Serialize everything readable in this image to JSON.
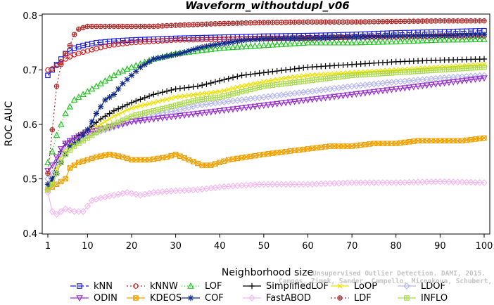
{
  "chart_data": {
    "type": "line",
    "title": "Waveform_withoutdupl_v06",
    "xlabel": "Neighborhood size",
    "ylabel": "ROC AUC",
    "xlim": [
      1,
      100
    ],
    "ylim": [
      0.4,
      0.8
    ],
    "xticks": [
      1,
      10,
      20,
      30,
      40,
      50,
      60,
      70,
      80,
      90,
      100
    ],
    "yticks": [
      0.4,
      0.5,
      0.6,
      0.7,
      0.8
    ],
    "grid": false,
    "legend_position": "bottom",
    "watermark": [
      "Unsupervised Outlier Detection. DAMI, 2015.",
      "Campos, Zimek, Sander, Campello, Micenkova, Schubert, Assent, Houle"
    ],
    "series": [
      {
        "name": "kNN",
        "color": "#1a1adb",
        "marker": "square",
        "dash": "8,3",
        "points": [
          [
            1,
            0.69
          ],
          [
            2,
            0.7
          ],
          [
            3,
            0.71
          ],
          [
            4,
            0.72
          ],
          [
            5,
            0.73
          ],
          [
            7,
            0.74
          ],
          [
            9,
            0.745
          ],
          [
            12,
            0.75
          ],
          [
            16,
            0.753
          ],
          [
            20,
            0.755
          ],
          [
            30,
            0.758
          ],
          [
            40,
            0.76
          ],
          [
            50,
            0.762
          ],
          [
            60,
            0.763
          ],
          [
            70,
            0.765
          ],
          [
            80,
            0.768
          ],
          [
            90,
            0.77
          ],
          [
            100,
            0.772
          ]
        ]
      },
      {
        "name": "kNNW",
        "color": "#d11a1a",
        "marker": "circle",
        "dash": "2,3",
        "points": [
          [
            1,
            0.7
          ],
          [
            2,
            0.702
          ],
          [
            3,
            0.708
          ],
          [
            4,
            0.715
          ],
          [
            5,
            0.72
          ],
          [
            7,
            0.728
          ],
          [
            10,
            0.735
          ],
          [
            15,
            0.745
          ],
          [
            20,
            0.75
          ],
          [
            30,
            0.755
          ],
          [
            40,
            0.756
          ],
          [
            50,
            0.758
          ],
          [
            60,
            0.758
          ],
          [
            70,
            0.76
          ],
          [
            80,
            0.76
          ],
          [
            90,
            0.762
          ],
          [
            100,
            0.762
          ]
        ]
      },
      {
        "name": "LOF",
        "color": "#22c422",
        "marker": "triangle",
        "dash": "1,3",
        "points": [
          [
            1,
            0.53
          ],
          [
            2,
            0.55
          ],
          [
            3,
            0.58
          ],
          [
            4,
            0.6
          ],
          [
            5,
            0.62
          ],
          [
            7,
            0.645
          ],
          [
            9,
            0.655
          ],
          [
            11,
            0.665
          ],
          [
            14,
            0.68
          ],
          [
            17,
            0.695
          ],
          [
            20,
            0.705
          ],
          [
            25,
            0.72
          ],
          [
            30,
            0.73
          ],
          [
            35,
            0.735
          ],
          [
            40,
            0.74
          ],
          [
            50,
            0.745
          ],
          [
            60,
            0.75
          ],
          [
            70,
            0.75
          ],
          [
            80,
            0.752
          ],
          [
            90,
            0.755
          ],
          [
            100,
            0.756
          ]
        ]
      },
      {
        "name": "SimplifiedLOF",
        "color": "#000000",
        "marker": "plus",
        "dash": "",
        "points": [
          [
            1,
            0.48
          ],
          [
            2,
            0.5
          ],
          [
            3,
            0.53
          ],
          [
            4,
            0.55
          ],
          [
            5,
            0.565
          ],
          [
            7,
            0.575
          ],
          [
            10,
            0.59
          ],
          [
            13,
            0.61
          ],
          [
            16,
            0.625
          ],
          [
            20,
            0.64
          ],
          [
            25,
            0.655
          ],
          [
            30,
            0.665
          ],
          [
            35,
            0.67
          ],
          [
            40,
            0.68
          ],
          [
            45,
            0.69
          ],
          [
            50,
            0.695
          ],
          [
            55,
            0.7
          ],
          [
            60,
            0.705
          ],
          [
            70,
            0.71
          ],
          [
            80,
            0.715
          ],
          [
            90,
            0.718
          ],
          [
            100,
            0.72
          ]
        ]
      },
      {
        "name": "LoOP",
        "color": "#f0e000",
        "marker": "x",
        "dash": "",
        "points": [
          [
            1,
            0.48
          ],
          [
            2,
            0.49
          ],
          [
            3,
            0.52
          ],
          [
            4,
            0.54
          ],
          [
            5,
            0.555
          ],
          [
            7,
            0.57
          ],
          [
            10,
            0.585
          ],
          [
            13,
            0.6
          ],
          [
            16,
            0.615
          ],
          [
            20,
            0.63
          ],
          [
            25,
            0.64
          ],
          [
            30,
            0.65
          ],
          [
            35,
            0.655
          ],
          [
            40,
            0.66
          ],
          [
            45,
            0.67
          ],
          [
            50,
            0.678
          ],
          [
            55,
            0.685
          ],
          [
            60,
            0.69
          ],
          [
            70,
            0.695
          ],
          [
            80,
            0.7
          ],
          [
            90,
            0.705
          ],
          [
            100,
            0.71
          ]
        ]
      },
      {
        "name": "LDOF",
        "color": "#b7b7f2",
        "marker": "diamond",
        "dash": "",
        "points": [
          [
            1,
            0.5
          ],
          [
            2,
            0.51
          ],
          [
            3,
            0.53
          ],
          [
            4,
            0.545
          ],
          [
            5,
            0.56
          ],
          [
            7,
            0.57
          ],
          [
            10,
            0.58
          ],
          [
            14,
            0.59
          ],
          [
            18,
            0.6
          ],
          [
            22,
            0.61
          ],
          [
            26,
            0.62
          ],
          [
            30,
            0.625
          ],
          [
            35,
            0.635
          ],
          [
            40,
            0.64
          ],
          [
            45,
            0.645
          ],
          [
            50,
            0.65
          ],
          [
            55,
            0.655
          ],
          [
            60,
            0.66
          ],
          [
            65,
            0.665
          ],
          [
            70,
            0.67
          ],
          [
            80,
            0.678
          ],
          [
            90,
            0.685
          ],
          [
            100,
            0.69
          ]
        ]
      },
      {
        "name": "ODIN",
        "color": "#9a2fd1",
        "marker": "triangle-down",
        "dash": "",
        "points": [
          [
            1,
            0.515
          ],
          [
            2,
            0.525
          ],
          [
            3,
            0.54
          ],
          [
            4,
            0.555
          ],
          [
            5,
            0.565
          ],
          [
            7,
            0.575
          ],
          [
            10,
            0.585
          ],
          [
            15,
            0.595
          ],
          [
            20,
            0.605
          ],
          [
            25,
            0.61
          ],
          [
            30,
            0.615
          ],
          [
            35,
            0.62
          ],
          [
            40,
            0.625
          ],
          [
            45,
            0.63
          ],
          [
            50,
            0.635
          ],
          [
            55,
            0.64
          ],
          [
            60,
            0.645
          ],
          [
            65,
            0.65
          ],
          [
            70,
            0.655
          ],
          [
            75,
            0.66
          ],
          [
            80,
            0.665
          ],
          [
            85,
            0.67
          ],
          [
            90,
            0.675
          ],
          [
            95,
            0.68
          ],
          [
            100,
            0.685
          ]
        ]
      },
      {
        "name": "KDEOS",
        "color": "#f0a000",
        "marker": "square-x",
        "dash": "",
        "points": [
          [
            1,
            0.48
          ],
          [
            2,
            0.485
          ],
          [
            3,
            0.49
          ],
          [
            4,
            0.495
          ],
          [
            5,
            0.5
          ],
          [
            6,
            0.52
          ],
          [
            8,
            0.53
          ],
          [
            10,
            0.535
          ],
          [
            12,
            0.54
          ],
          [
            15,
            0.545
          ],
          [
            18,
            0.54
          ],
          [
            20,
            0.535
          ],
          [
            24,
            0.535
          ],
          [
            28,
            0.54
          ],
          [
            30,
            0.545
          ],
          [
            33,
            0.535
          ],
          [
            36,
            0.525
          ],
          [
            38,
            0.525
          ],
          [
            42,
            0.535
          ],
          [
            46,
            0.54
          ],
          [
            50,
            0.545
          ],
          [
            55,
            0.55
          ],
          [
            60,
            0.555
          ],
          [
            65,
            0.56
          ],
          [
            70,
            0.56
          ],
          [
            75,
            0.565
          ],
          [
            80,
            0.565
          ],
          [
            85,
            0.57
          ],
          [
            90,
            0.57
          ],
          [
            95,
            0.57
          ],
          [
            100,
            0.575
          ]
        ]
      },
      {
        "name": "COF",
        "color": "#102a8a",
        "marker": "star",
        "dash": "",
        "points": [
          [
            1,
            0.49
          ],
          [
            2,
            0.5
          ],
          [
            3,
            0.51
          ],
          [
            4,
            0.53
          ],
          [
            5,
            0.545
          ],
          [
            6,
            0.56
          ],
          [
            8,
            0.57
          ],
          [
            10,
            0.59
          ],
          [
            12,
            0.62
          ],
          [
            14,
            0.645
          ],
          [
            16,
            0.655
          ],
          [
            18,
            0.675
          ],
          [
            20,
            0.69
          ],
          [
            22,
            0.705
          ],
          [
            25,
            0.72
          ],
          [
            28,
            0.725
          ],
          [
            31,
            0.73
          ],
          [
            35,
            0.74
          ],
          [
            38,
            0.745
          ],
          [
            42,
            0.75
          ],
          [
            46,
            0.755
          ],
          [
            50,
            0.757
          ],
          [
            60,
            0.758
          ],
          [
            70,
            0.76
          ],
          [
            80,
            0.762
          ],
          [
            90,
            0.763
          ],
          [
            100,
            0.765
          ]
        ]
      },
      {
        "name": "FastABOD",
        "color": "#f4b8f0",
        "marker": "diamond",
        "dash": "",
        "points": [
          [
            1,
            0.475
          ],
          [
            2,
            0.44
          ],
          [
            3,
            0.435
          ],
          [
            4,
            0.44
          ],
          [
            5,
            0.445
          ],
          [
            7,
            0.44
          ],
          [
            9,
            0.44
          ],
          [
            11,
            0.46
          ],
          [
            13,
            0.465
          ],
          [
            16,
            0.47
          ],
          [
            19,
            0.475
          ],
          [
            22,
            0.47
          ],
          [
            25,
            0.475
          ],
          [
            30,
            0.478
          ],
          [
            35,
            0.48
          ],
          [
            40,
            0.485
          ],
          [
            45,
            0.488
          ],
          [
            50,
            0.49
          ],
          [
            55,
            0.49
          ],
          [
            60,
            0.49
          ],
          [
            70,
            0.493
          ],
          [
            80,
            0.493
          ],
          [
            90,
            0.495
          ],
          [
            100,
            0.493
          ]
        ]
      },
      {
        "name": "LDF",
        "color": "#b02a2a",
        "marker": "circle-plus",
        "dash": "2,3",
        "points": [
          [
            1,
            0.51
          ],
          [
            2,
            0.59
          ],
          [
            3,
            0.67
          ],
          [
            4,
            0.71
          ],
          [
            5,
            0.73
          ],
          [
            6,
            0.745
          ],
          [
            7,
            0.765
          ],
          [
            8,
            0.775
          ],
          [
            10,
            0.78
          ],
          [
            13,
            0.78
          ],
          [
            16,
            0.78
          ],
          [
            20,
            0.78
          ],
          [
            25,
            0.78
          ],
          [
            30,
            0.782
          ],
          [
            40,
            0.785
          ],
          [
            50,
            0.787
          ],
          [
            60,
            0.788
          ],
          [
            70,
            0.788
          ],
          [
            80,
            0.789
          ],
          [
            90,
            0.79
          ],
          [
            100,
            0.79
          ]
        ]
      },
      {
        "name": "INFLO",
        "color": "#a8d948",
        "marker": "square-cross",
        "dash": "",
        "points": [
          [
            1,
            0.48
          ],
          [
            2,
            0.49
          ],
          [
            3,
            0.51
          ],
          [
            4,
            0.53
          ],
          [
            5,
            0.545
          ],
          [
            7,
            0.56
          ],
          [
            10,
            0.575
          ],
          [
            13,
            0.59
          ],
          [
            16,
            0.6
          ],
          [
            20,
            0.615
          ],
          [
            25,
            0.625
          ],
          [
            30,
            0.635
          ],
          [
            35,
            0.645
          ],
          [
            40,
            0.65
          ],
          [
            45,
            0.66
          ],
          [
            50,
            0.67
          ],
          [
            55,
            0.675
          ],
          [
            60,
            0.68
          ],
          [
            65,
            0.685
          ],
          [
            70,
            0.69
          ],
          [
            80,
            0.695
          ],
          [
            90,
            0.7
          ],
          [
            100,
            0.705
          ]
        ]
      }
    ],
    "legend_rows": [
      [
        "kNN",
        "kNNW",
        "LOF",
        "SimplifiedLOF",
        "LoOP",
        "LDOF"
      ],
      [
        "ODIN",
        "KDEOS",
        "COF",
        "FastABOD",
        "LDF",
        "INFLO"
      ]
    ]
  }
}
